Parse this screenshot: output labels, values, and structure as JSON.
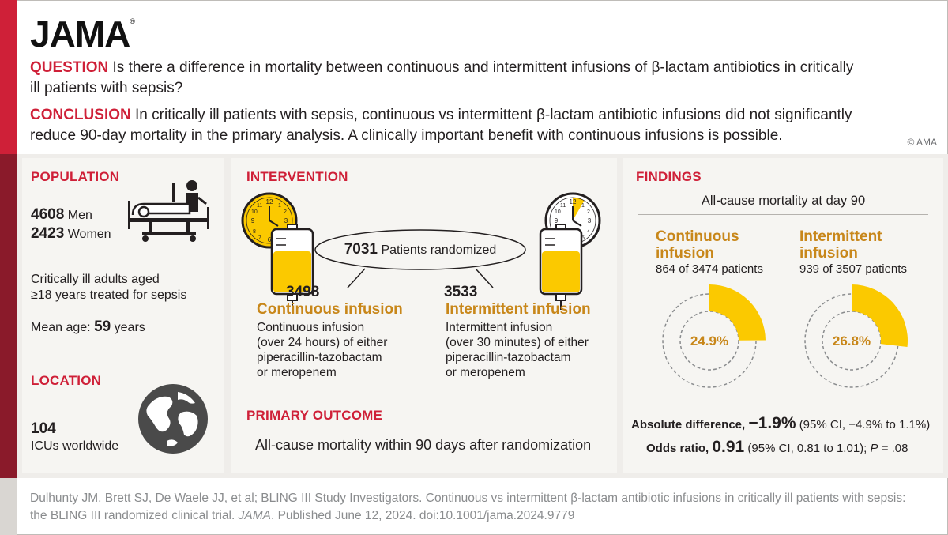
{
  "logo": {
    "name": "JAMA",
    "mark": "®"
  },
  "question": {
    "label": "QUESTION",
    "text": "Is there a difference in mortality between continuous and intermittent infusions of β-lactam antibiotics in critically ill patients with sepsis?"
  },
  "conclusion": {
    "label": "CONCLUSION",
    "text": "In critically ill patients with sepsis, continuous vs intermittent β-lactam antibiotic infusions did not significantly reduce 90-day mortality in the primary analysis. A clinically important benefit with continuous infusions is possible."
  },
  "copyright": "© AMA",
  "population": {
    "title": "POPULATION",
    "men_count": "4608",
    "men_label": "Men",
    "women_count": "2423",
    "women_label": "Women",
    "desc_line1": "Critically ill adults aged",
    "desc_line2": "≥18 years treated for sepsis",
    "age_label": "Mean age:",
    "age_value": "59",
    "age_unit": "years"
  },
  "location": {
    "title": "LOCATION",
    "count": "104",
    "label": "ICUs worldwide"
  },
  "intervention": {
    "title": "INTERVENTION",
    "randomized_count": "7031",
    "randomized_label": "Patients randomized",
    "continuous": {
      "count": "3498",
      "name": "Continuous infusion",
      "line1": "Continuous infusion",
      "line2": "(over 24 hours) of either",
      "line3": "piperacillin-tazobactam",
      "line4": "or meropenem"
    },
    "intermittent": {
      "count": "3533",
      "name": "Intermittent infusion",
      "line1": "Intermittent infusion",
      "line2": "(over 30 minutes) of either",
      "line3": "piperacillin-tazobactam",
      "line4": "or meropenem"
    }
  },
  "primary_outcome": {
    "title": "PRIMARY OUTCOME",
    "text": "All-cause mortality within 90 days after randomization"
  },
  "findings": {
    "title": "FINDINGS",
    "subtitle": "All-cause mortality at day 90",
    "continuous": {
      "name_line1": "Continuous",
      "name_line2": "infusion",
      "events": "864 of 3474 patients",
      "pct_label": "24.9%",
      "pct": 24.9
    },
    "intermittent": {
      "name_line1": "Intermittent",
      "name_line2": "infusion",
      "events": "939 of 3507 patients",
      "pct_label": "26.8%",
      "pct": 26.8
    },
    "abs_diff_label": "Absolute difference,",
    "abs_diff_value": "−1.9%",
    "abs_diff_ci": "(95% CI, −4.9% to 1.1%)",
    "or_label": "Odds ratio,",
    "or_value": "0.91",
    "or_ci": "(95% CI, 0.81 to 1.01);",
    "p_label": "P",
    "p_value": "= .08"
  },
  "citation": {
    "line1": "Dulhunty JM, Brett SJ, De Waele JJ, et al; BLING III Study Investigators. Continuous vs intermittent β-lactam antibiotic infusions in critically ill patients with sepsis:",
    "line2a": "the BLING III randomized clinical trial.",
    "journal": "JAMA",
    "line2b": ". Published June 12, 2024. doi:10.1001/jama.2024.9779"
  },
  "colors": {
    "red": "#cf2038",
    "dark_red": "#8a1a2a",
    "yellow": "#fbc900",
    "gold_text": "#c8871a",
    "band": "#efedea",
    "panel": "#f6f5f2"
  },
  "icons": [
    "hospital-bed-icon",
    "globe-icon",
    "clock-icon",
    "iv-bag-icon"
  ]
}
